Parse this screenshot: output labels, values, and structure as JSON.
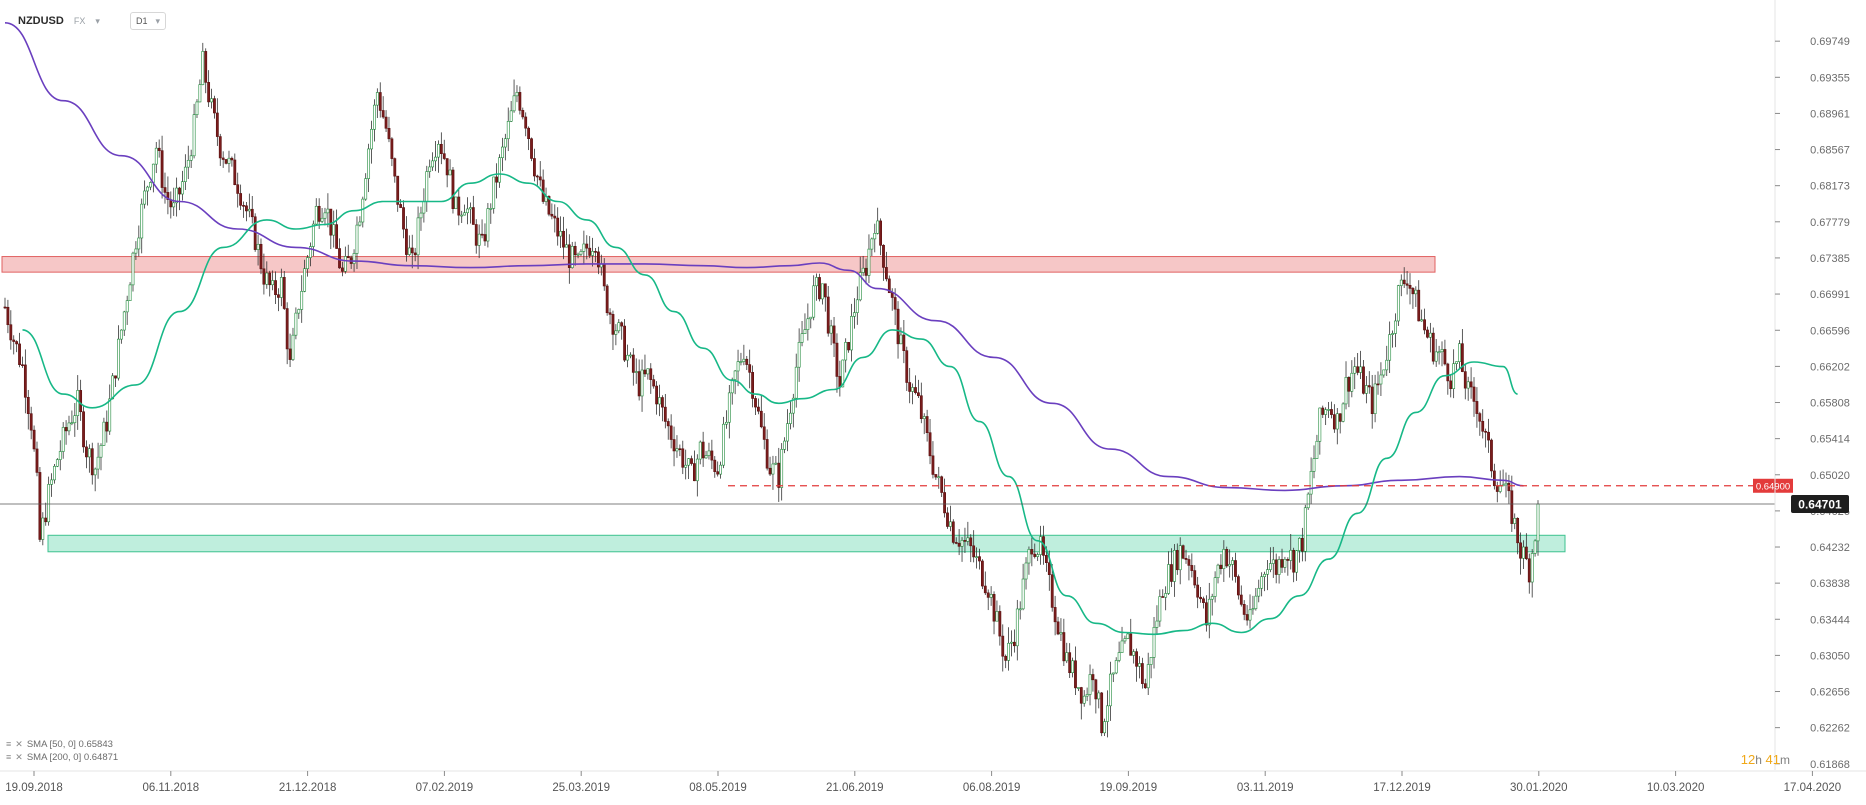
{
  "header": {
    "symbol": "NZDUSD",
    "market": "FX",
    "timeframe": "D1"
  },
  "legend": [
    {
      "label": "SMA [50, 0] 0.65843",
      "color": "#17b887"
    },
    {
      "label": "SMA [200, 0] 0.64871",
      "color": "#6a3fbf"
    }
  ],
  "countdown": {
    "hours": "12",
    "h_unit": "h",
    "minutes": "41",
    "m_unit": "m"
  },
  "chart_data": {
    "type": "candlestick",
    "instrument": "NZDUSD",
    "timeframe": "D1",
    "ylim": [
      0.618,
      0.6998
    ],
    "y_ticks": [
      "0.69749",
      "0.69355",
      "0.68961",
      "0.68567",
      "0.68173",
      "0.67779",
      "0.67385",
      "0.66991",
      "0.66596",
      "0.66202",
      "0.65808",
      "0.65414",
      "0.65020",
      "0.64626",
      "0.64232",
      "0.63838",
      "0.63444",
      "0.63050",
      "0.62656",
      "0.62262",
      "0.61868"
    ],
    "x_ticks": [
      "19.09.2018",
      "06.11.2018",
      "21.12.2018",
      "07.02.2019",
      "25.03.2019",
      "08.05.2019",
      "21.06.2019",
      "06.08.2019",
      "19.09.2019",
      "03.11.2019",
      "17.12.2019",
      "30.01.2020",
      "10.03.2020",
      "17.04.2020"
    ],
    "current_price": "0.64701",
    "current_price_value": 0.64701,
    "alert_level": "0.64900",
    "alert_level_value": 0.649,
    "zones": [
      {
        "name": "resistance",
        "from": 0.6723,
        "to": 0.674,
        "color": "#f6c7c7",
        "border": "#e06060"
      },
      {
        "name": "support",
        "from": 0.6418,
        "to": 0.6436,
        "color": "#bfeedd",
        "border": "#3ec28f"
      }
    ],
    "price_path": [
      [
        0,
        0.6685
      ],
      [
        3,
        0.665
      ],
      [
        6,
        0.662
      ],
      [
        9,
        0.656
      ],
      [
        11,
        0.649
      ],
      [
        12,
        0.643
      ],
      [
        15,
        0.648
      ],
      [
        18,
        0.652
      ],
      [
        22,
        0.656
      ],
      [
        25,
        0.658
      ],
      [
        28,
        0.653
      ],
      [
        31,
        0.651
      ],
      [
        35,
        0.656
      ],
      [
        38,
        0.662
      ],
      [
        42,
        0.67
      ],
      [
        45,
        0.676
      ],
      [
        49,
        0.682
      ],
      [
        52,
        0.686
      ],
      [
        55,
        0.681
      ],
      [
        58,
        0.679
      ],
      [
        62,
        0.683
      ],
      [
        65,
        0.688
      ],
      [
        68,
        0.695
      ],
      [
        71,
        0.69
      ],
      [
        74,
        0.686
      ],
      [
        77,
        0.684
      ],
      [
        80,
        0.682
      ],
      [
        83,
        0.679
      ],
      [
        86,
        0.676
      ],
      [
        89,
        0.672
      ],
      [
        92,
        0.67
      ],
      [
        95,
        0.671
      ],
      [
        98,
        0.662
      ],
      [
        101,
        0.669
      ],
      [
        104,
        0.674
      ],
      [
        107,
        0.679
      ],
      [
        110,
        0.68
      ],
      [
        113,
        0.676
      ],
      [
        116,
        0.672
      ],
      [
        119,
        0.674
      ],
      [
        122,
        0.679
      ],
      [
        125,
        0.686
      ],
      [
        128,
        0.692
      ],
      [
        131,
        0.688
      ],
      [
        134,
        0.682
      ],
      [
        137,
        0.677
      ],
      [
        140,
        0.673
      ],
      [
        143,
        0.679
      ],
      [
        146,
        0.685
      ],
      [
        149,
        0.687
      ],
      [
        152,
        0.684
      ],
      [
        155,
        0.679
      ],
      [
        158,
        0.68
      ],
      [
        161,
        0.677
      ],
      [
        164,
        0.675
      ],
      [
        167,
        0.68
      ],
      [
        170,
        0.684
      ],
      [
        173,
        0.688
      ],
      [
        176,
        0.692
      ],
      [
        179,
        0.689
      ],
      [
        182,
        0.684
      ],
      [
        185,
        0.68
      ],
      [
        188,
        0.678
      ],
      [
        191,
        0.676
      ],
      [
        194,
        0.674
      ],
      [
        197,
        0.673
      ],
      [
        200,
        0.675
      ],
      [
        203,
        0.676
      ],
      [
        206,
        0.67
      ],
      [
        209,
        0.667
      ],
      [
        212,
        0.665
      ],
      [
        215,
        0.662
      ],
      [
        218,
        0.66
      ],
      [
        221,
        0.661
      ],
      [
        224,
        0.659
      ],
      [
        227,
        0.656
      ],
      [
        230,
        0.654
      ],
      [
        233,
        0.652
      ],
      [
        236,
        0.65
      ],
      [
        239,
        0.653
      ],
      [
        242,
        0.652
      ],
      [
        245,
        0.651
      ],
      [
        248,
        0.656
      ],
      [
        251,
        0.661
      ],
      [
        254,
        0.664
      ],
      [
        257,
        0.66
      ],
      [
        260,
        0.655
      ],
      [
        263,
        0.651
      ],
      [
        266,
        0.65
      ],
      [
        269,
        0.656
      ],
      [
        272,
        0.662
      ],
      [
        275,
        0.666
      ],
      [
        278,
        0.67
      ],
      [
        281,
        0.671
      ],
      [
        284,
        0.665
      ],
      [
        287,
        0.66
      ],
      [
        290,
        0.665
      ],
      [
        293,
        0.67
      ],
      [
        296,
        0.673
      ],
      [
        299,
        0.678
      ],
      [
        302,
        0.674
      ],
      [
        305,
        0.669
      ],
      [
        308,
        0.664
      ],
      [
        311,
        0.66
      ],
      [
        314,
        0.658
      ],
      [
        317,
        0.654
      ],
      [
        320,
        0.65
      ],
      [
        323,
        0.647
      ],
      [
        326,
        0.644
      ],
      [
        329,
        0.643
      ],
      [
        332,
        0.642
      ],
      [
        335,
        0.64
      ],
      [
        338,
        0.638
      ],
      [
        341,
        0.634
      ],
      [
        344,
        0.63
      ],
      [
        347,
        0.633
      ],
      [
        350,
        0.638
      ],
      [
        353,
        0.643
      ],
      [
        356,
        0.642
      ],
      [
        359,
        0.638
      ],
      [
        362,
        0.634
      ],
      [
        365,
        0.63
      ],
      [
        368,
        0.628
      ],
      [
        371,
        0.626
      ],
      [
        374,
        0.629
      ],
      [
        377,
        0.623
      ],
      [
        380,
        0.627
      ],
      [
        383,
        0.63
      ],
      [
        386,
        0.632
      ],
      [
        389,
        0.63
      ],
      [
        392,
        0.627
      ],
      [
        395,
        0.633
      ],
      [
        398,
        0.638
      ],
      [
        401,
        0.64
      ],
      [
        404,
        0.642
      ],
      [
        407,
        0.641
      ],
      [
        410,
        0.638
      ],
      [
        413,
        0.634
      ],
      [
        416,
        0.639
      ],
      [
        419,
        0.642
      ],
      [
        422,
        0.64
      ],
      [
        425,
        0.636
      ],
      [
        428,
        0.634
      ],
      [
        431,
        0.638
      ],
      [
        434,
        0.641
      ],
      [
        437,
        0.64
      ],
      [
        440,
        0.642
      ],
      [
        443,
        0.641
      ],
      [
        446,
        0.643
      ],
      [
        449,
        0.65
      ],
      [
        452,
        0.656
      ],
      [
        455,
        0.658
      ],
      [
        458,
        0.656
      ],
      [
        461,
        0.66
      ],
      [
        464,
        0.662
      ],
      [
        467,
        0.66
      ],
      [
        470,
        0.658
      ],
      [
        473,
        0.661
      ],
      [
        476,
        0.665
      ],
      [
        479,
        0.67
      ],
      [
        482,
        0.672
      ],
      [
        485,
        0.669
      ],
      [
        488,
        0.666
      ],
      [
        491,
        0.664
      ],
      [
        494,
        0.663
      ],
      [
        497,
        0.661
      ],
      [
        500,
        0.663
      ],
      [
        503,
        0.659
      ],
      [
        506,
        0.658
      ],
      [
        509,
        0.654
      ],
      [
        512,
        0.65
      ],
      [
        515,
        0.649
      ],
      [
        518,
        0.646
      ],
      [
        521,
        0.642
      ],
      [
        524,
        0.64
      ],
      [
        527,
        0.646
      ]
    ],
    "sma50": [
      [
        6,
        0.666
      ],
      [
        20,
        0.659
      ],
      [
        30,
        0.6575
      ],
      [
        45,
        0.66
      ],
      [
        60,
        0.668
      ],
      [
        75,
        0.675
      ],
      [
        90,
        0.678
      ],
      [
        100,
        0.677
      ],
      [
        110,
        0.6775
      ],
      [
        120,
        0.679
      ],
      [
        130,
        0.68
      ],
      [
        140,
        0.68
      ],
      [
        150,
        0.68
      ],
      [
        160,
        0.682
      ],
      [
        170,
        0.683
      ],
      [
        180,
        0.682
      ],
      [
        190,
        0.68
      ],
      [
        200,
        0.678
      ],
      [
        210,
        0.675
      ],
      [
        220,
        0.672
      ],
      [
        230,
        0.668
      ],
      [
        240,
        0.664
      ],
      [
        250,
        0.6605
      ],
      [
        258,
        0.659
      ],
      [
        266,
        0.658
      ],
      [
        274,
        0.6585
      ],
      [
        285,
        0.6595
      ],
      [
        295,
        0.663
      ],
      [
        305,
        0.666
      ],
      [
        315,
        0.665
      ],
      [
        325,
        0.662
      ],
      [
        335,
        0.656
      ],
      [
        345,
        0.65
      ],
      [
        355,
        0.643
      ],
      [
        365,
        0.637
      ],
      [
        375,
        0.634
      ],
      [
        385,
        0.633
      ],
      [
        395,
        0.6328
      ],
      [
        405,
        0.6332
      ],
      [
        415,
        0.634
      ],
      [
        425,
        0.633
      ],
      [
        435,
        0.6345
      ],
      [
        445,
        0.637
      ],
      [
        455,
        0.641
      ],
      [
        465,
        0.646
      ],
      [
        475,
        0.652
      ],
      [
        485,
        0.657
      ],
      [
        495,
        0.661
      ],
      [
        505,
        0.6625
      ],
      [
        515,
        0.662
      ],
      [
        520,
        0.659
      ]
    ],
    "sma200": [
      [
        0,
        0.6995
      ],
      [
        20,
        0.691
      ],
      [
        40,
        0.685
      ],
      [
        60,
        0.68
      ],
      [
        80,
        0.677
      ],
      [
        100,
        0.675
      ],
      [
        120,
        0.6735
      ],
      [
        140,
        0.673
      ],
      [
        160,
        0.6728
      ],
      [
        180,
        0.673
      ],
      [
        200,
        0.6732
      ],
      [
        220,
        0.6732
      ],
      [
        240,
        0.673
      ],
      [
        255,
        0.6728
      ],
      [
        270,
        0.673
      ],
      [
        280,
        0.6733
      ],
      [
        290,
        0.6725
      ],
      [
        300,
        0.6705
      ],
      [
        320,
        0.667
      ],
      [
        340,
        0.663
      ],
      [
        360,
        0.658
      ],
      [
        380,
        0.653
      ],
      [
        400,
        0.65
      ],
      [
        420,
        0.6488
      ],
      [
        440,
        0.6485
      ],
      [
        460,
        0.649
      ],
      [
        480,
        0.6496
      ],
      [
        500,
        0.65
      ],
      [
        515,
        0.6496
      ],
      [
        522,
        0.649
      ]
    ]
  }
}
